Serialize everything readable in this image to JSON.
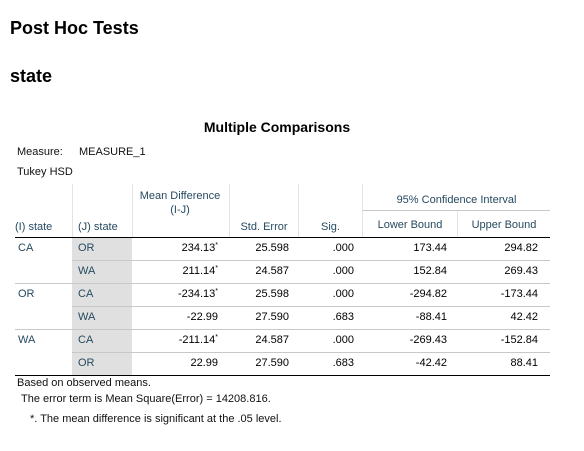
{
  "page_title": "Post Hoc Tests",
  "section_title": "state",
  "table": {
    "title": "Multiple Comparisons",
    "measure_label": "Measure:",
    "measure_value": "MEASURE_1",
    "method": "Tukey HSD",
    "headers": {
      "i_state": "(I) state",
      "j_state": "(J) state",
      "mean_diff": "Mean Difference (I-J)",
      "std_error": "Std. Error",
      "sig": "Sig.",
      "ci_group": "95% Confidence Interval",
      "lower": "Lower Bound",
      "upper": "Upper Bound"
    },
    "rows": [
      {
        "i": "CA",
        "j": "OR",
        "mean": "234.13",
        "star": "*",
        "se": "25.598",
        "sig": ".000",
        "lower": "173.44",
        "upper": "294.82"
      },
      {
        "i": "",
        "j": "WA",
        "mean": "211.14",
        "star": "*",
        "se": "24.587",
        "sig": ".000",
        "lower": "152.84",
        "upper": "269.43"
      },
      {
        "i": "OR",
        "j": "CA",
        "mean": "-234.13",
        "star": "*",
        "se": "25.598",
        "sig": ".000",
        "lower": "-294.82",
        "upper": "-173.44"
      },
      {
        "i": "",
        "j": "WA",
        "mean": "-22.99",
        "star": "",
        "se": "27.590",
        "sig": ".683",
        "lower": "-88.41",
        "upper": "42.42"
      },
      {
        "i": "WA",
        "j": "CA",
        "mean": "-211.14",
        "star": "*",
        "se": "24.587",
        "sig": ".000",
        "lower": "-269.43",
        "upper": "-152.84"
      },
      {
        "i": "",
        "j": "OR",
        "mean": "22.99",
        "star": "",
        "se": "27.590",
        "sig": ".683",
        "lower": "-42.42",
        "upper": "88.41"
      }
    ],
    "footnotes": {
      "based_on": "Based on observed means.",
      "error_term": "The error term is Mean Square(Error) = 14208.816.",
      "significance": "*. The mean difference is significant at the .05 level."
    }
  },
  "colors": {
    "header_text": "#264a60",
    "label_shading": "#e0e0e0"
  }
}
